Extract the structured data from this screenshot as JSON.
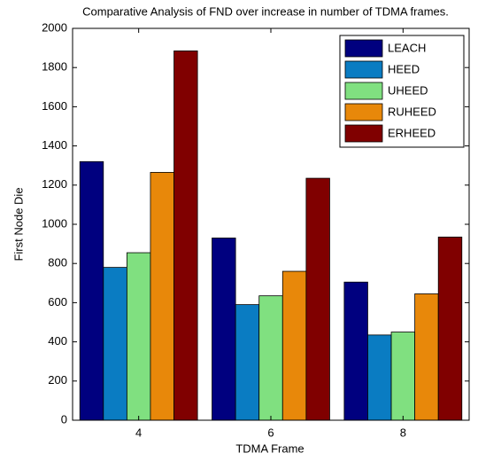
{
  "chart_data": {
    "type": "bar",
    "title": "Comparative Analysis of FND over increase in number of TDMA frames.",
    "x_label": "TDMA Frame",
    "y_label": "First Node Die",
    "categories": [
      "4",
      "6",
      "8"
    ],
    "series": [
      {
        "name": "LEACH",
        "color": "#00007f",
        "values": [
          1320,
          930,
          705
        ]
      },
      {
        "name": "HEED",
        "color": "#0a7cc2",
        "values": [
          780,
          590,
          435
        ]
      },
      {
        "name": "UHEED",
        "color": "#80e080",
        "values": [
          855,
          635,
          450
        ]
      },
      {
        "name": "RUHEED",
        "color": "#e8880a",
        "values": [
          1265,
          760,
          645
        ]
      },
      {
        "name": "ERHEED",
        "color": "#800000",
        "values": [
          1885,
          1235,
          935
        ]
      }
    ],
    "ylim": [
      0,
      2000
    ],
    "yticks": [
      0,
      200,
      400,
      600,
      800,
      1000,
      1200,
      1400,
      1600,
      1800,
      2000
    ],
    "legend": "top-right"
  }
}
